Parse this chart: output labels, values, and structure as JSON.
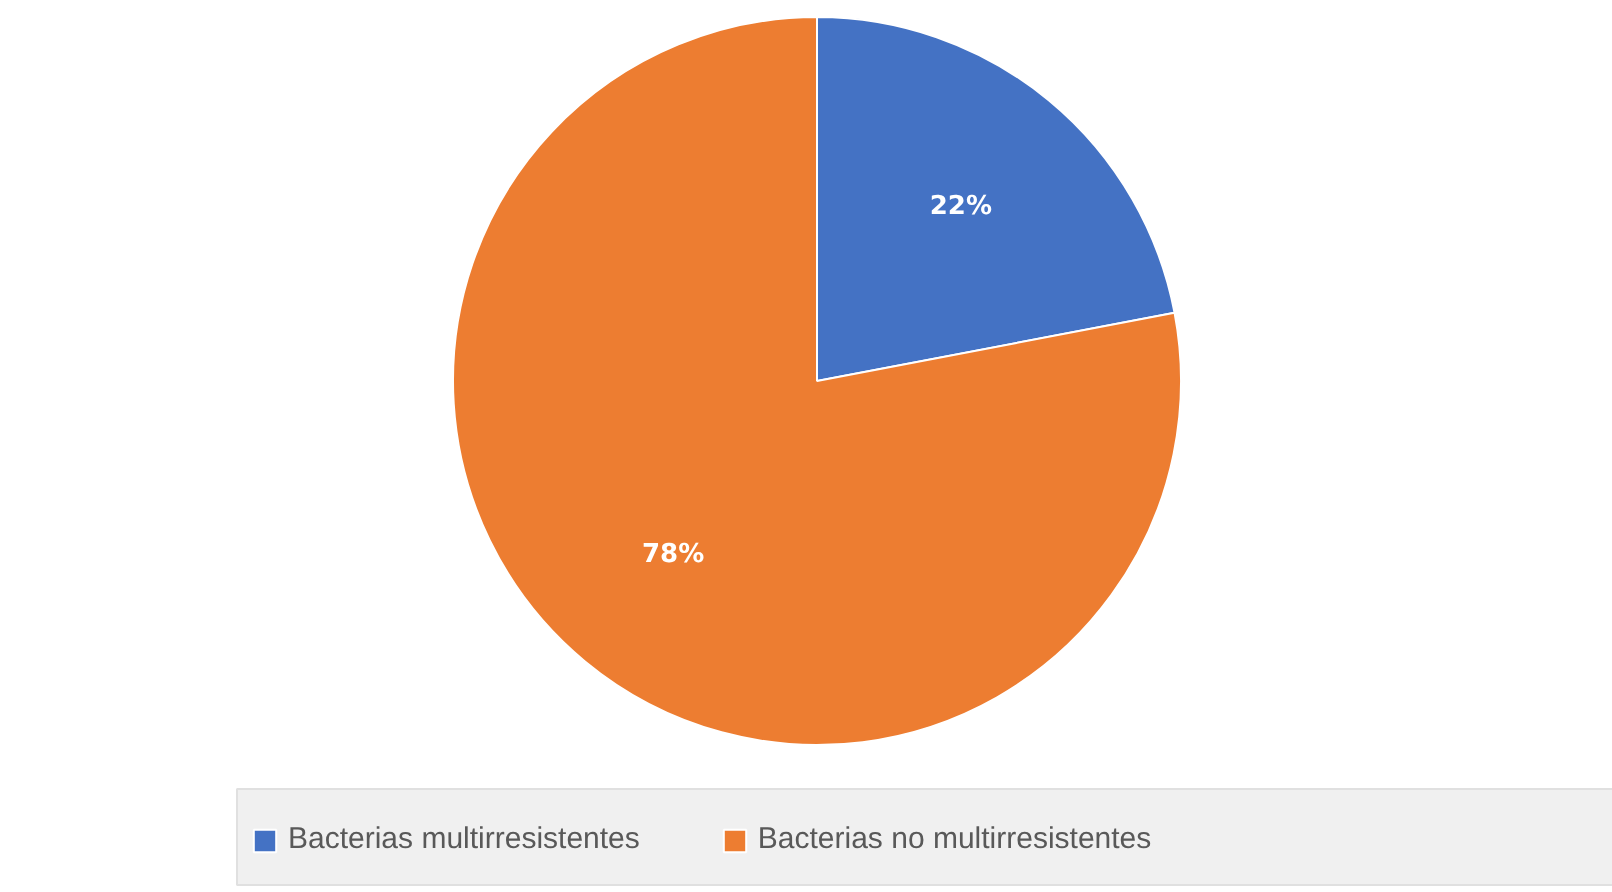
{
  "chart_data": {
    "type": "pie",
    "categories": [
      "Bacterias multirresistentes",
      "Bacterias no multirresistentes"
    ],
    "values": [
      22,
      78
    ],
    "colors": [
      "#4472c4",
      "#ed7d31"
    ],
    "value_labels": [
      "22%",
      "78%"
    ],
    "legend": "bottom"
  }
}
